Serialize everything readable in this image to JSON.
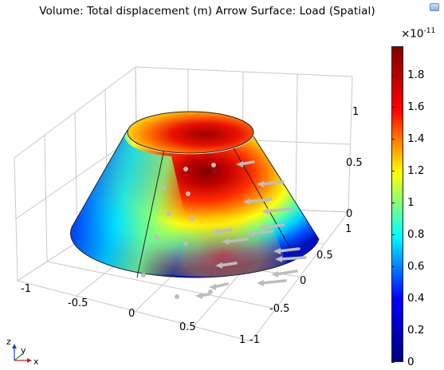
{
  "title": "Volume: Total displacement (m)  Arrow Surface: Load (Spatial)",
  "colorbar": {
    "scale": "×10",
    "exponent": "-11",
    "ticks": [
      "1.8",
      "1.6",
      "1.4",
      "1.2",
      "1",
      "0.8",
      "0.6",
      "0.4",
      "0.2",
      "0"
    ],
    "tick_values": [
      1.8,
      1.6,
      1.4,
      1.2,
      1.0,
      0.8,
      0.6,
      0.4,
      0.2,
      0
    ],
    "max": 1.98,
    "colormap": [
      "#00007f",
      "#0000ff",
      "#00ffff",
      "#ffff00",
      "#ff0000",
      "#7f0000"
    ]
  },
  "axes": {
    "x_ticks": [
      "-1",
      "-0.5",
      "0",
      "0.5",
      "1"
    ],
    "y_ticks": [
      "1",
      "0.5",
      "0",
      "-0.5",
      "-1"
    ],
    "z_ticks": [
      "1",
      "0.5",
      "0"
    ],
    "z_axis_bottom": "-1"
  },
  "triad": {
    "z": "z",
    "y": "y",
    "x": "x"
  },
  "colors": {
    "arrow": "#bdbdbd",
    "edge": "#222222",
    "grid": "#c8c8c8"
  }
}
